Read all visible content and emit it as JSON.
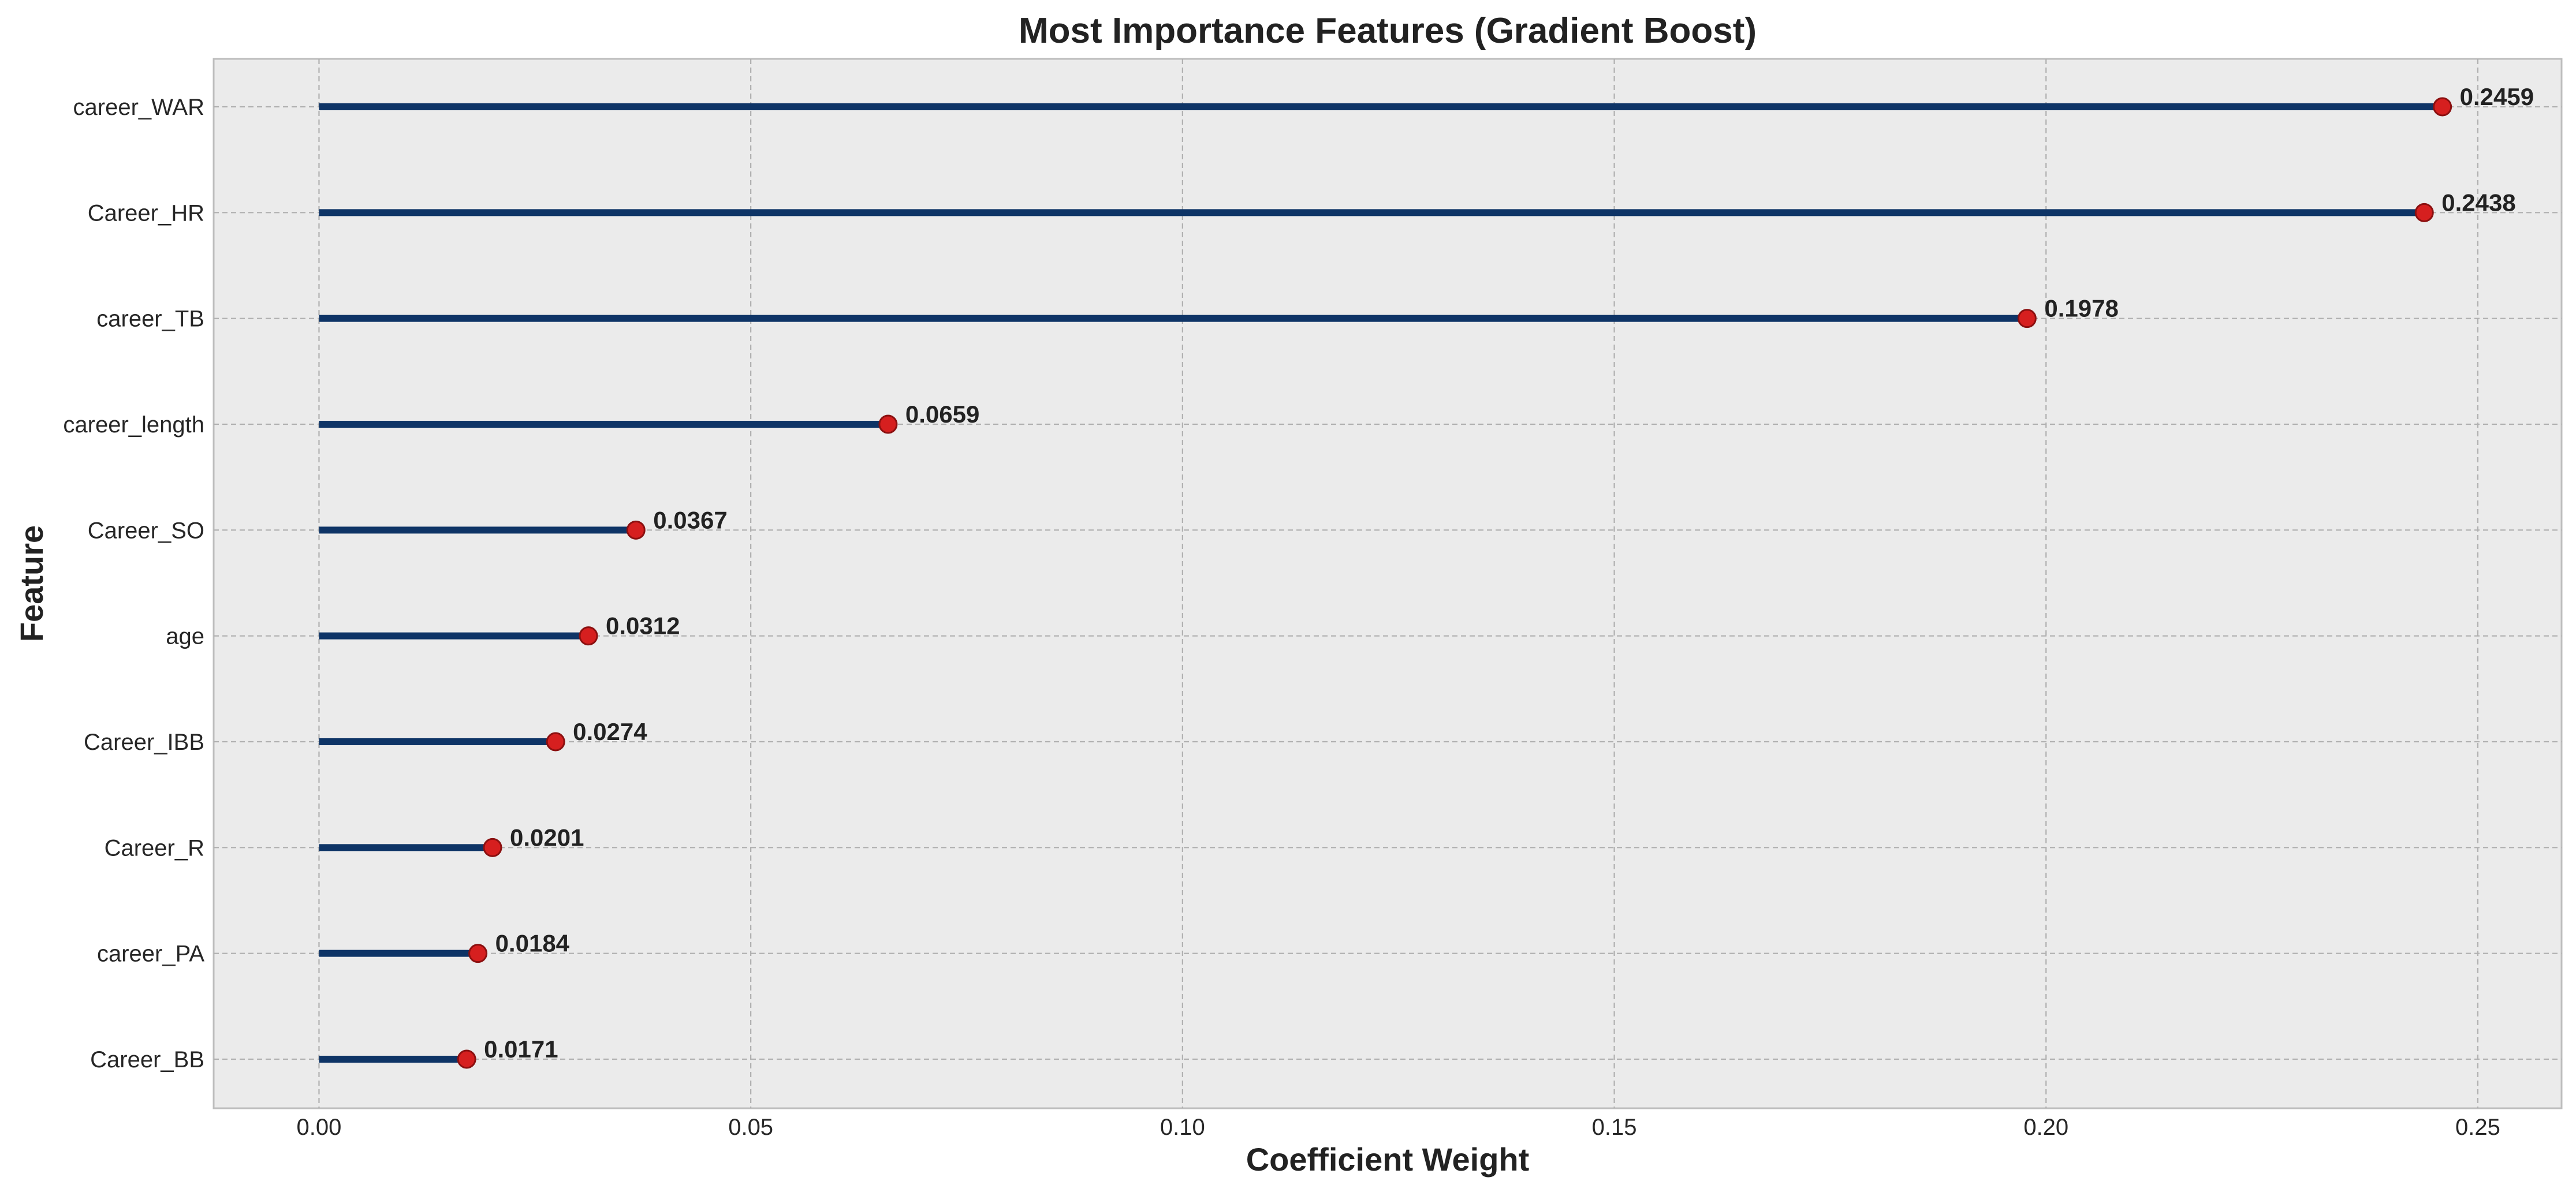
{
  "chart_data": {
    "type": "lollipop",
    "title": "Most Importance Features (Gradient Boost)",
    "xlabel": "Coefficient Weight",
    "ylabel": "Feature",
    "xlim": [
      -0.0122,
      0.2597
    ],
    "xticks": [
      0.0,
      0.05,
      0.1,
      0.15,
      0.2,
      0.25
    ],
    "xtick_labels": [
      "0.00",
      "0.05",
      "0.10",
      "0.15",
      "0.20",
      "0.25"
    ],
    "grid": true,
    "categories": [
      "career_WAR",
      "Career_HR",
      "career_TB",
      "career_length",
      "Career_SO",
      "age",
      "Career_IBB",
      "Career_R",
      "career_PA",
      "Career_BB"
    ],
    "values": [
      0.2459,
      0.2438,
      0.1978,
      0.0659,
      0.0367,
      0.0312,
      0.0274,
      0.0201,
      0.0184,
      0.0171
    ],
    "data_labels": [
      "0.2459",
      "0.2438",
      "0.1978",
      "0.0659",
      "0.0367",
      "0.0312",
      "0.0274",
      "0.0201",
      "0.0184",
      "0.0171"
    ],
    "colors": {
      "stem": "#0e3466",
      "marker_fill": "#d61f1f",
      "marker_edge": "#8b1010",
      "plot_background": "#ebebeb",
      "grid": "#b0b0b0",
      "frame": "#bdbdbd"
    }
  }
}
